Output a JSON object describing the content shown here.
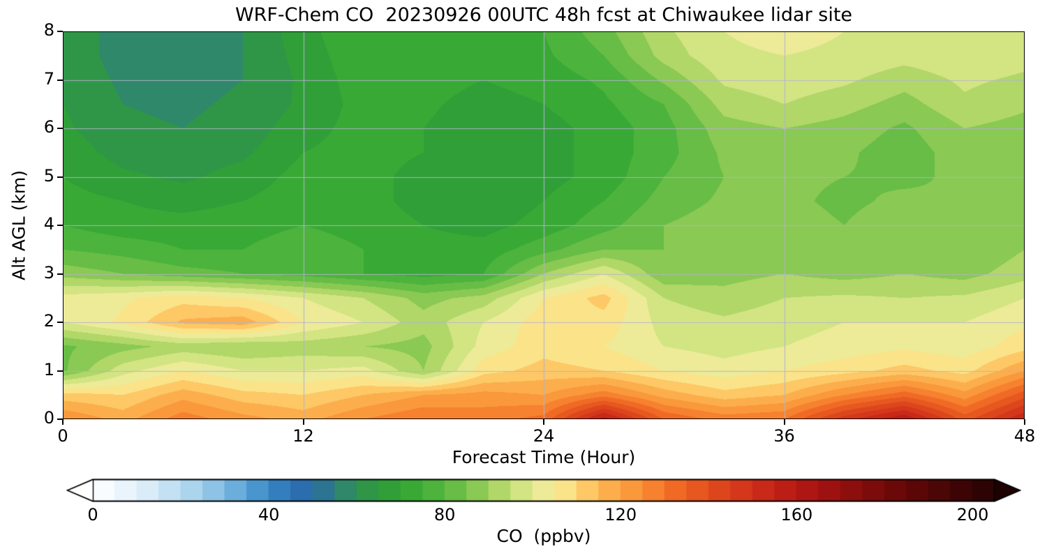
{
  "figure": {
    "title": "WRF-Chem CO  20230926 00UTC 48h fcst at Chiwaukee lidar site"
  },
  "colors": {
    "background": "#ffffff",
    "axis": "#000000",
    "grid": "#b4b4cc"
  },
  "chart_data": {
    "type": "heatmap",
    "title": "WRF-Chem CO  20230926 00UTC 48h fcst at Chiwaukee lidar site",
    "xlabel": "Forecast Time (Hour)",
    "ylabel": "Alt AGL (km)",
    "xlim": [
      0,
      48
    ],
    "ylim": [
      0,
      8
    ],
    "xticks": [
      0,
      12,
      24,
      36,
      48
    ],
    "yticks": [
      0,
      1,
      2,
      3,
      4,
      5,
      6,
      7,
      8
    ],
    "grid": true,
    "x": [
      0,
      3,
      6,
      9,
      12,
      15,
      18,
      21,
      24,
      27,
      30,
      33,
      36,
      39,
      42,
      45,
      48
    ],
    "y": [
      0,
      0.5,
      1,
      1.5,
      2,
      2.5,
      3,
      3.5,
      4,
      4.5,
      5,
      5.5,
      6,
      6.5,
      7,
      7.5,
      8
    ],
    "values": [
      [
        125,
        118,
        128,
        122,
        118,
        125,
        130,
        128,
        132,
        158,
        135,
        128,
        130,
        148,
        160,
        138,
        155
      ],
      [
        112,
        110,
        118,
        112,
        110,
        115,
        120,
        122,
        120,
        128,
        118,
        112,
        115,
        125,
        133,
        122,
        138
      ],
      [
        84,
        98,
        105,
        100,
        100,
        102,
        90,
        108,
        112,
        110,
        105,
        102,
        105,
        108,
        112,
        108,
        120
      ],
      [
        84,
        88,
        92,
        90,
        92,
        90,
        88,
        102,
        108,
        105,
        100,
        98,
        100,
        102,
        104,
        102,
        108
      ],
      [
        100,
        106,
        116,
        118,
        105,
        100,
        92,
        100,
        108,
        108,
        98,
        96,
        98,
        100,
        100,
        100,
        104
      ],
      [
        102,
        104,
        108,
        105,
        100,
        95,
        88,
        92,
        105,
        112,
        95,
        92,
        95,
        96,
        95,
        96,
        100
      ],
      [
        88,
        85,
        82,
        80,
        78,
        75,
        73,
        75,
        90,
        100,
        86,
        88,
        90,
        88,
        90,
        88,
        93
      ],
      [
        80,
        78,
        75,
        75,
        78,
        75,
        72,
        72,
        78,
        85,
        85,
        88,
        88,
        86,
        88,
        85,
        90
      ],
      [
        75,
        72,
        72,
        73,
        75,
        73,
        70,
        68,
        72,
        78,
        85,
        88,
        87,
        85,
        88,
        86,
        88
      ],
      [
        72,
        70,
        68,
        70,
        73,
        72,
        68,
        66,
        70,
        75,
        82,
        86,
        86,
        84,
        86,
        85,
        86
      ],
      [
        70,
        66,
        64,
        67,
        72,
        72,
        68,
        65,
        68,
        72,
        80,
        85,
        86,
        85,
        84,
        86,
        85
      ],
      [
        68,
        63,
        62,
        64,
        70,
        72,
        70,
        66,
        68,
        72,
        78,
        86,
        88,
        86,
        82,
        88,
        86
      ],
      [
        66,
        61,
        60,
        62,
        68,
        72,
        70,
        67,
        68,
        72,
        78,
        88,
        90,
        88,
        84,
        90,
        88
      ],
      [
        65,
        60,
        59,
        61,
        66,
        72,
        71,
        68,
        70,
        74,
        80,
        92,
        95,
        92,
        88,
        94,
        91
      ],
      [
        64,
        59,
        58,
        60,
        66,
        73,
        72,
        70,
        72,
        76,
        86,
        96,
        98,
        96,
        92,
        96,
        94
      ],
      [
        63,
        58,
        58,
        60,
        67,
        74,
        73,
        72,
        74,
        80,
        92,
        99,
        100,
        99,
        97,
        99,
        97
      ],
      [
        63,
        58,
        57,
        60,
        68,
        75,
        74,
        73,
        75,
        83,
        94,
        100,
        102,
        100,
        98,
        100,
        98
      ]
    ],
    "colorbar": {
      "label": "CO  (ppbv)",
      "ticks": [
        0,
        40,
        80,
        120,
        160,
        200
      ],
      "range": [
        0,
        205
      ],
      "level_step": 5,
      "extend": "both",
      "colormap": [
        [
          -10,
          "#ffffff"
        ],
        [
          0,
          "#ffffff"
        ],
        [
          5,
          "#f1f8fd"
        ],
        [
          10,
          "#e2f0fa"
        ],
        [
          15,
          "#d0e7f6"
        ],
        [
          20,
          "#b8dbf1"
        ],
        [
          25,
          "#9dcce9"
        ],
        [
          30,
          "#7dbae1"
        ],
        [
          35,
          "#58a2d5"
        ],
        [
          40,
          "#3a8ac6"
        ],
        [
          45,
          "#2b74b6"
        ],
        [
          50,
          "#2b66a4"
        ],
        [
          55,
          "#2f7f80"
        ],
        [
          60,
          "#2f9152"
        ],
        [
          65,
          "#2e9a3c"
        ],
        [
          70,
          "#32a433"
        ],
        [
          75,
          "#40ad38"
        ],
        [
          80,
          "#57b83f"
        ],
        [
          85,
          "#77c24a"
        ],
        [
          90,
          "#9dd05b"
        ],
        [
          95,
          "#c3de74"
        ],
        [
          100,
          "#e3ea92"
        ],
        [
          105,
          "#f7ec9e"
        ],
        [
          108,
          "#fce185"
        ],
        [
          112,
          "#fdcb67"
        ],
        [
          118,
          "#fcab49"
        ],
        [
          125,
          "#f98d34"
        ],
        [
          132,
          "#f16c25"
        ],
        [
          140,
          "#e24e1d"
        ],
        [
          150,
          "#cf2f1a"
        ],
        [
          160,
          "#b51813"
        ],
        [
          172,
          "#8e0f0e"
        ],
        [
          185,
          "#630808"
        ],
        [
          198,
          "#3a0404"
        ],
        [
          210,
          "#160101"
        ]
      ]
    }
  }
}
